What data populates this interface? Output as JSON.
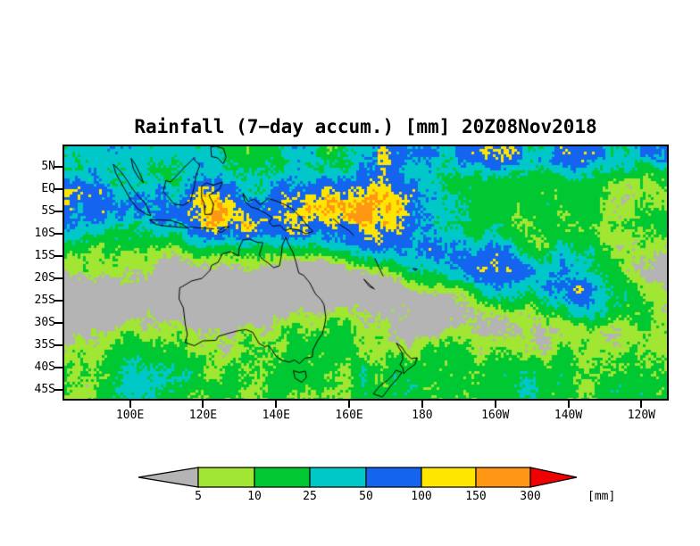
{
  "chart_data": {
    "type": "heatmap",
    "title": "Rainfall (7−day accum.) [mm] 20Z08Nov2018",
    "x_axis": {
      "tick_labels": [
        "100E",
        "120E",
        "140E",
        "160E",
        "180",
        "160W",
        "140W",
        "120W"
      ],
      "tick_lons_deg_east": [
        100,
        120,
        140,
        160,
        180,
        200,
        220,
        240
      ],
      "range_deg_east": [
        82,
        247
      ]
    },
    "y_axis": {
      "tick_labels": [
        "5N",
        "EQ",
        "5S",
        "10S",
        "15S",
        "20S",
        "25S",
        "30S",
        "35S",
        "40S",
        "45S"
      ],
      "tick_lats_deg_north": [
        5,
        0,
        -5,
        -10,
        -15,
        -20,
        -25,
        -30,
        -35,
        -40,
        -45
      ],
      "range_deg_north": [
        9.6,
        -47
      ]
    },
    "colorbar": {
      "levels_mm": [
        5,
        10,
        25,
        50,
        100,
        150,
        300
      ],
      "labels": [
        "5",
        "10",
        "25",
        "50",
        "100",
        "150",
        "300"
      ],
      "unit_label": "[mm]",
      "colors": [
        "#b4b4b4",
        "#a0e632",
        "#00c832",
        "#00c8c8",
        "#1464f0",
        "#ffe600",
        "#ff9614",
        "#f00000"
      ],
      "legend_position": "bottom"
    },
    "background_color": "#ffffff",
    "coastline_color": "#000000",
    "grid": false
  }
}
